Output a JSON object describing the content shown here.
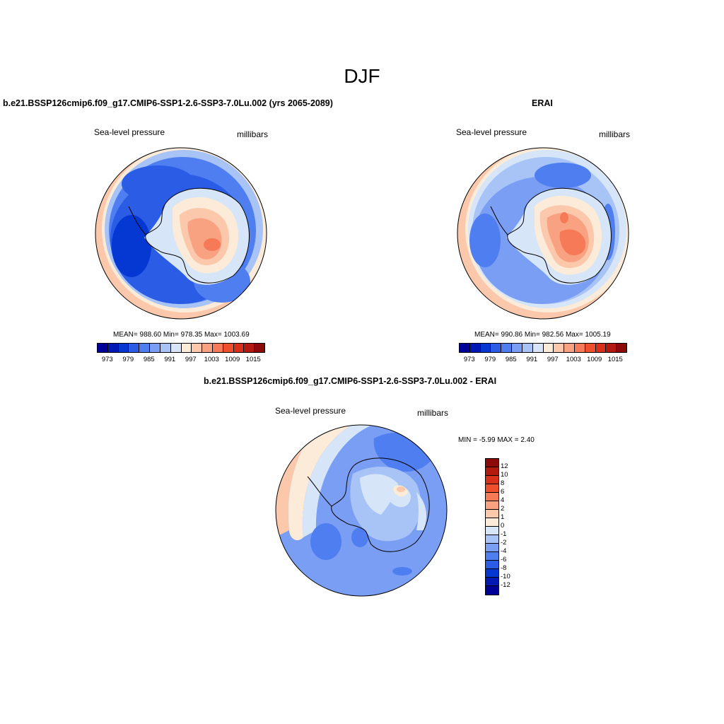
{
  "title": "DJF",
  "panels": [
    {
      "title": "b.e21.BSSP126cmip6.f09_g17.CMIP6-SSP1-2.6-SSP3-7.0Lu.002 (yrs 2065-2089)",
      "left_label": "Sea-level pressure",
      "right_label": "millibars",
      "stats": "MEAN= 988.60  Min= 978.35  Max= 1003.69"
    },
    {
      "title": "ERAI",
      "left_label": "Sea-level pressure",
      "right_label": "millibars",
      "stats": "MEAN= 990.86  Min= 982.56  Max= 1005.19"
    }
  ],
  "abs_colorbar": {
    "colors": [
      "#000096",
      "#0019b4",
      "#0538d2",
      "#2a5ce6",
      "#4f7ef0",
      "#7a9ef4",
      "#a8c4f6",
      "#d6e6f8",
      "#fcebd8",
      "#fcc8ac",
      "#f9a282",
      "#f77a58",
      "#ee4f2c",
      "#d8301a",
      "#b21a0f",
      "#8c0a0a"
    ],
    "tick_labels": [
      "973",
      "979",
      "985",
      "991",
      "997",
      "1003",
      "1009",
      "1015"
    ]
  },
  "diff_panel": {
    "title": "b.e21.BSSP126cmip6.f09_g17.CMIP6-SSP1-2.6-SSP3-7.0Lu.002 - ERAI",
    "left_label": "Sea-level pressure",
    "right_label": "millibars",
    "minmax": "MIN =  -5.99 MAX =   2.40"
  },
  "diff_colorbar": {
    "colors": [
      "#8c0a0a",
      "#b21a0f",
      "#d8301a",
      "#ee4f2c",
      "#f77a58",
      "#f9a282",
      "#fcc8ac",
      "#fcebd8",
      "#d6e6f8",
      "#a8c4f6",
      "#7a9ef4",
      "#4f7ef0",
      "#2a5ce6",
      "#0538d2",
      "#0019b4",
      "#000096"
    ],
    "tick_labels": [
      "12",
      "10",
      "8",
      "6",
      "4",
      "2",
      "1",
      "0",
      "-1",
      "-2",
      "-4",
      "-6",
      "-8",
      "-10",
      "-12"
    ]
  },
  "palette": {
    "map_blue": "#5a82e8",
    "map_light_blue": "#8fb0f2",
    "map_pale_blue": "#d6e6f8",
    "map_deep_blue": "#2a5ce6",
    "map_dark_blue": "#0538d2",
    "map_pale_red": "#fcc8ac",
    "map_red": "#f77a58",
    "map_cream": "#fcebd8"
  }
}
